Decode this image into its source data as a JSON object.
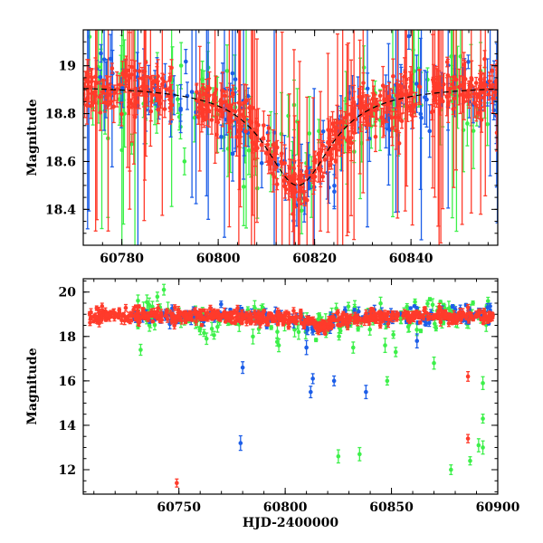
{
  "colors": {
    "red": "#ff3b2b",
    "green": "#3df04a",
    "blue": "#1d5ee8",
    "model": "#000000",
    "frame": "#000000"
  },
  "chart_data": [
    {
      "type": "scatter",
      "panel": "top",
      "xlabel": "",
      "ylabel": "Magnitude",
      "xlim": [
        60772,
        60858
      ],
      "ylim": [
        19.15,
        18.25
      ],
      "y_inverted": true,
      "x_ticks": [
        60780,
        60800,
        60820,
        60840
      ],
      "x_tick_labels": [
        "60780",
        "60800",
        "60820",
        "60840"
      ],
      "y_ticks": [
        18.4,
        18.6,
        18.8,
        19.0
      ],
      "y_tick_labels": [
        "18.4",
        "18.6",
        "18.8",
        "19"
      ],
      "model_curve": {
        "description_type": "peak",
        "baseline_mag": 18.92,
        "peak_x": 60816.5,
        "peak_mag": 18.5,
        "width": 8.5
      },
      "series_style": [
        {
          "color_key": "green"
        },
        {
          "color_key": "blue"
        },
        {
          "color_key": "red"
        }
      ]
    },
    {
      "type": "scatter",
      "panel": "bottom",
      "xlabel": "HJD-2400000",
      "ylabel": "Magnitude",
      "xlim": [
        60705,
        60900
      ],
      "ylim": [
        20.6,
        10.9
      ],
      "y_inverted": true,
      "x_ticks": [
        60750,
        60800,
        60850,
        60900
      ],
      "x_tick_labels": [
        "60750",
        "60800",
        "60850",
        "60900"
      ],
      "y_ticks": [
        12,
        14,
        16,
        18,
        20
      ],
      "y_tick_labels": [
        "12",
        "14",
        "16",
        "18",
        "20"
      ],
      "outliers": [
        {
          "x": 60749,
          "y": 11.4,
          "c": "red"
        },
        {
          "x": 60779,
          "y": 13.2,
          "c": "blue"
        },
        {
          "x": 60780,
          "y": 16.6,
          "c": "blue"
        },
        {
          "x": 60732,
          "y": 17.4,
          "c": "green"
        },
        {
          "x": 60812,
          "y": 15.5,
          "c": "blue"
        },
        {
          "x": 60813,
          "y": 16.1,
          "c": "blue"
        },
        {
          "x": 60823,
          "y": 16.0,
          "c": "blue"
        },
        {
          "x": 60825,
          "y": 12.6,
          "c": "green"
        },
        {
          "x": 60835,
          "y": 12.7,
          "c": "green"
        },
        {
          "x": 60838,
          "y": 15.5,
          "c": "blue"
        },
        {
          "x": 60848,
          "y": 16.0,
          "c": "green"
        },
        {
          "x": 60870,
          "y": 16.8,
          "c": "green"
        },
        {
          "x": 60878,
          "y": 12.0,
          "c": "green"
        },
        {
          "x": 60887,
          "y": 12.4,
          "c": "green"
        },
        {
          "x": 60891,
          "y": 13.1,
          "c": "green"
        },
        {
          "x": 60893,
          "y": 13.0,
          "c": "green"
        },
        {
          "x": 60893,
          "y": 14.3,
          "c": "green"
        },
        {
          "x": 60886,
          "y": 13.4,
          "c": "red"
        },
        {
          "x": 60886,
          "y": 16.2,
          "c": "red"
        },
        {
          "x": 60893,
          "y": 15.9,
          "c": "green"
        },
        {
          "x": 60763,
          "y": 17.9,
          "c": "green"
        },
        {
          "x": 60797,
          "y": 17.6,
          "c": "green"
        },
        {
          "x": 60810,
          "y": 17.5,
          "c": "blue"
        },
        {
          "x": 60832,
          "y": 17.5,
          "c": "green"
        },
        {
          "x": 60847,
          "y": 17.6,
          "c": "green"
        },
        {
          "x": 60862,
          "y": 17.8,
          "c": "blue"
        },
        {
          "x": 60852,
          "y": 17.3,
          "c": "green"
        }
      ],
      "series_style": [
        {
          "color_key": "green"
        },
        {
          "color_key": "blue"
        },
        {
          "color_key": "red"
        }
      ]
    }
  ]
}
